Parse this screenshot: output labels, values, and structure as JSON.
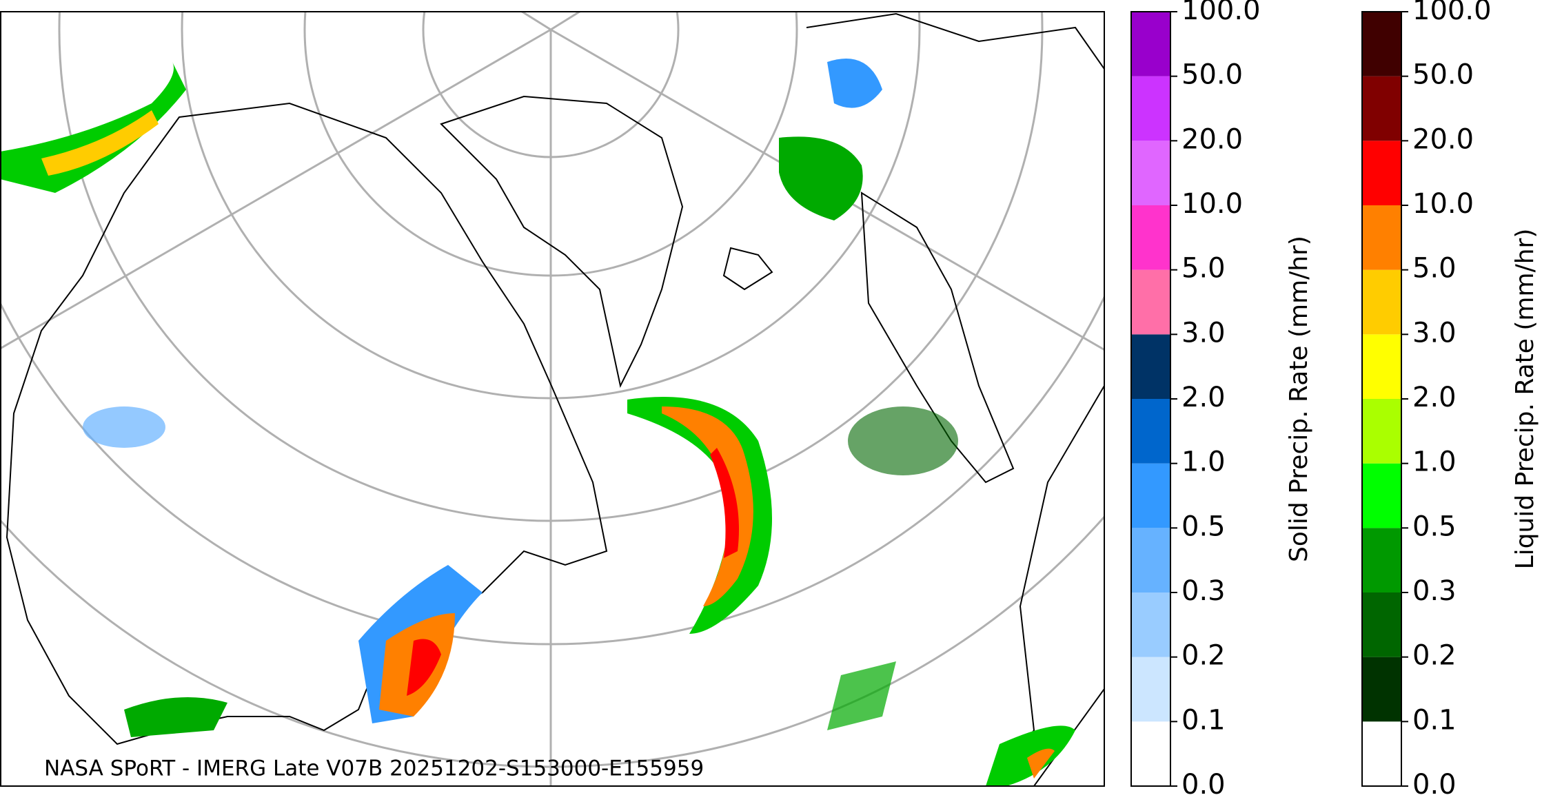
{
  "map": {
    "caption": "NASA SPoRT - IMERG Late V07B 20251202-S153000-E155959"
  },
  "colorbars": [
    {
      "label": "Solid Precip. Rate (mm/hr)",
      "ticks": [
        {
          "value": 0,
          "label": "0.0"
        },
        {
          "value": 0.1,
          "label": "0.1"
        },
        {
          "value": 0.2,
          "label": "0.2"
        },
        {
          "value": 0.3,
          "label": "0.3"
        },
        {
          "value": 0.5,
          "label": "0.5"
        },
        {
          "value": 1,
          "label": "1.0"
        },
        {
          "value": 2,
          "label": "2.0"
        },
        {
          "value": 3,
          "label": "3.0"
        },
        {
          "value": 5,
          "label": "5.0"
        },
        {
          "value": 10,
          "label": "10.0"
        },
        {
          "value": 20,
          "label": "20.0"
        },
        {
          "value": 50,
          "label": "50.0"
        },
        {
          "value": 100,
          "label": "100.0"
        }
      ],
      "colors": [
        "#ffffff",
        "#cce6ff",
        "#99ccff",
        "#66b2ff",
        "#3399ff",
        "#0066cc",
        "#003366",
        "#ff6fa8",
        "#ff33cc",
        "#e066ff",
        "#cc33ff",
        "#9900cc"
      ]
    },
    {
      "label": "Liquid Precip. Rate (mm/hr)",
      "ticks": [
        {
          "value": 0,
          "label": "0.0"
        },
        {
          "value": 0.1,
          "label": "0.1"
        },
        {
          "value": 0.2,
          "label": "0.2"
        },
        {
          "value": 0.3,
          "label": "0.3"
        },
        {
          "value": 0.5,
          "label": "0.5"
        },
        {
          "value": 1,
          "label": "1.0"
        },
        {
          "value": 2,
          "label": "2.0"
        },
        {
          "value": 3,
          "label": "3.0"
        },
        {
          "value": 5,
          "label": "5.0"
        },
        {
          "value": 10,
          "label": "10.0"
        },
        {
          "value": 20,
          "label": "20.0"
        },
        {
          "value": 50,
          "label": "50.0"
        },
        {
          "value": 100,
          "label": "100.0"
        }
      ],
      "colors": [
        "#ffffff",
        "#003300",
        "#006600",
        "#009900",
        "#00ff00",
        "#aaff00",
        "#ffff00",
        "#ffcc00",
        "#ff8000",
        "#ff0000",
        "#800000",
        "#400000"
      ]
    }
  ]
}
